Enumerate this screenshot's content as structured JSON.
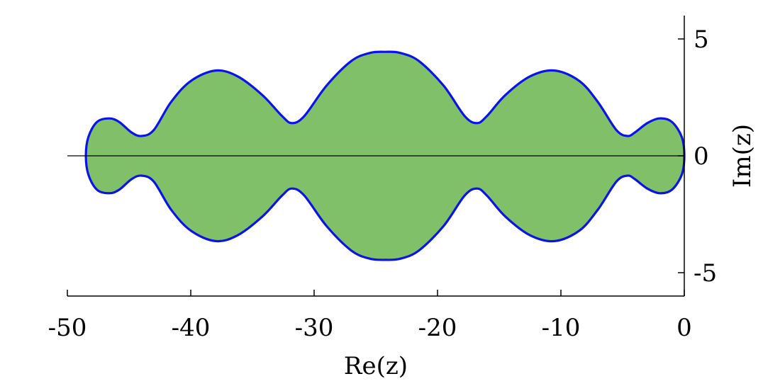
{
  "chart_data": {
    "type": "area",
    "title": "",
    "xlabel": "Re(z)",
    "ylabel": "Im(z)",
    "xlim": [
      -50,
      0
    ],
    "ylim": [
      -6,
      6
    ],
    "grid": false,
    "legend": "none",
    "x_ticks": [
      -50,
      -40,
      -30,
      -20,
      -10,
      0
    ],
    "x_tick_labels": [
      "-50",
      "-40",
      "-30",
      "-20",
      "-10",
      "0"
    ],
    "y_ticks": [
      -5,
      0,
      5
    ],
    "y_tick_labels": [
      "-5",
      "0",
      "5"
    ],
    "fill_color": "#80c068",
    "boundary_color": "#0a14e6",
    "series": [
      {
        "values": [
          {
            "x": 0.0,
            "y": 0.0
          },
          {
            "x": -0.2,
            "y": 0.8
          },
          {
            "x": -1.0,
            "y": 1.45
          },
          {
            "x": -2.0,
            "y": 1.6
          },
          {
            "x": -3.0,
            "y": 1.4
          },
          {
            "x": -4.0,
            "y": 1.0
          },
          {
            "x": -4.6,
            "y": 0.85
          },
          {
            "x": -5.5,
            "y": 1.1
          },
          {
            "x": -7.0,
            "y": 2.3
          },
          {
            "x": -8.5,
            "y": 3.2
          },
          {
            "x": -10.5,
            "y": 3.65
          },
          {
            "x": -12.5,
            "y": 3.4
          },
          {
            "x": -14.5,
            "y": 2.6
          },
          {
            "x": -16.0,
            "y": 1.7
          },
          {
            "x": -16.8,
            "y": 1.4
          },
          {
            "x": -17.8,
            "y": 1.7
          },
          {
            "x": -19.5,
            "y": 3.0
          },
          {
            "x": -21.5,
            "y": 4.05
          },
          {
            "x": -23.0,
            "y": 4.4
          },
          {
            "x": -24.2,
            "y": 4.45
          },
          {
            "x": -25.5,
            "y": 4.4
          },
          {
            "x": -27.0,
            "y": 4.05
          },
          {
            "x": -29.0,
            "y": 3.0
          },
          {
            "x": -30.8,
            "y": 1.7
          },
          {
            "x": -31.8,
            "y": 1.4
          },
          {
            "x": -32.6,
            "y": 1.7
          },
          {
            "x": -34.2,
            "y": 2.6
          },
          {
            "x": -36.2,
            "y": 3.4
          },
          {
            "x": -38.0,
            "y": 3.65
          },
          {
            "x": -40.0,
            "y": 3.2
          },
          {
            "x": -41.6,
            "y": 2.3
          },
          {
            "x": -43.0,
            "y": 1.1
          },
          {
            "x": -44.0,
            "y": 0.85
          },
          {
            "x": -44.8,
            "y": 1.0
          },
          {
            "x": -45.8,
            "y": 1.45
          },
          {
            "x": -46.6,
            "y": 1.6
          },
          {
            "x": -47.6,
            "y": 1.45
          },
          {
            "x": -48.3,
            "y": 0.8
          },
          {
            "x": -48.5,
            "y": 0.0
          },
          {
            "x": -48.3,
            "y": -0.8
          },
          {
            "x": -47.6,
            "y": -1.45
          },
          {
            "x": -46.6,
            "y": -1.6
          },
          {
            "x": -45.8,
            "y": -1.45
          },
          {
            "x": -44.8,
            "y": -1.0
          },
          {
            "x": -44.0,
            "y": -0.85
          },
          {
            "x": -43.0,
            "y": -1.1
          },
          {
            "x": -41.6,
            "y": -2.3
          },
          {
            "x": -40.0,
            "y": -3.2
          },
          {
            "x": -38.0,
            "y": -3.65
          },
          {
            "x": -36.2,
            "y": -3.4
          },
          {
            "x": -34.2,
            "y": -2.6
          },
          {
            "x": -32.6,
            "y": -1.7
          },
          {
            "x": -31.8,
            "y": -1.4
          },
          {
            "x": -30.8,
            "y": -1.7
          },
          {
            "x": -29.0,
            "y": -3.0
          },
          {
            "x": -27.0,
            "y": -4.05
          },
          {
            "x": -25.5,
            "y": -4.4
          },
          {
            "x": -24.2,
            "y": -4.45
          },
          {
            "x": -23.0,
            "y": -4.4
          },
          {
            "x": -21.5,
            "y": -4.05
          },
          {
            "x": -19.5,
            "y": -3.0
          },
          {
            "x": -17.8,
            "y": -1.7
          },
          {
            "x": -16.8,
            "y": -1.4
          },
          {
            "x": -16.0,
            "y": -1.7
          },
          {
            "x": -14.5,
            "y": -2.6
          },
          {
            "x": -12.5,
            "y": -3.4
          },
          {
            "x": -10.5,
            "y": -3.65
          },
          {
            "x": -8.5,
            "y": -3.2
          },
          {
            "x": -7.0,
            "y": -2.3
          },
          {
            "x": -5.5,
            "y": -1.1
          },
          {
            "x": -4.6,
            "y": -0.85
          },
          {
            "x": -4.0,
            "y": -1.0
          },
          {
            "x": -3.0,
            "y": -1.4
          },
          {
            "x": -2.0,
            "y": -1.6
          },
          {
            "x": -1.0,
            "y": -1.45
          },
          {
            "x": -0.2,
            "y": -0.8
          }
        ]
      }
    ]
  }
}
